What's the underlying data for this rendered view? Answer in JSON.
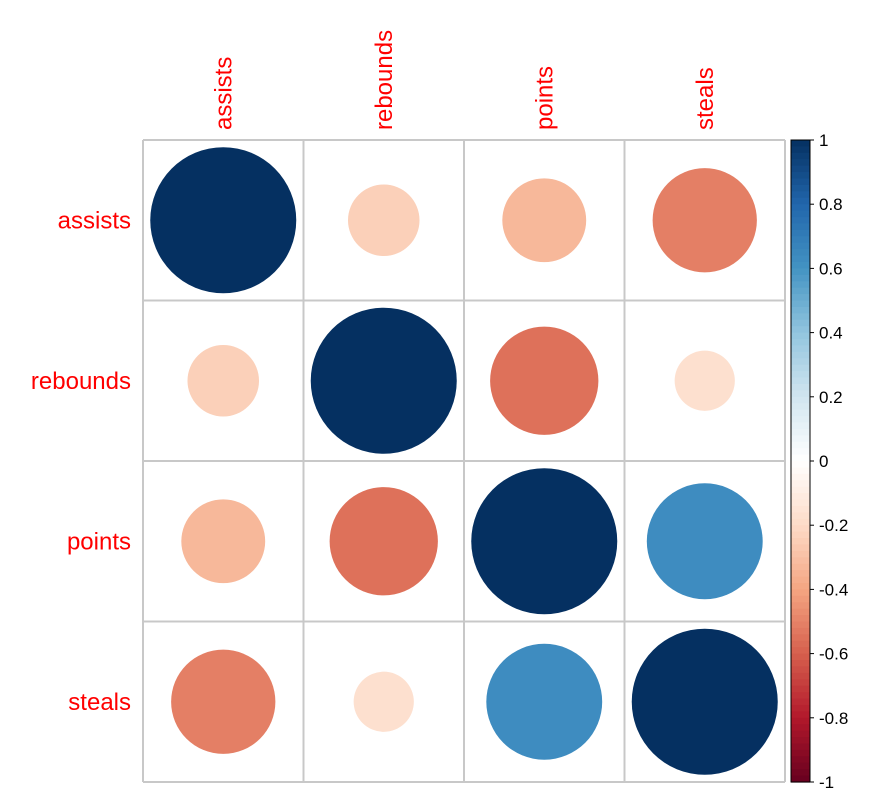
{
  "chart_data": {
    "type": "heatmap",
    "style": "corrplot-circle",
    "variables": [
      "assists",
      "rebounds",
      "points",
      "steals"
    ],
    "matrix": [
      [
        1.0,
        -0.24,
        -0.33,
        -0.51
      ],
      [
        -0.24,
        1.0,
        -0.55,
        -0.17
      ],
      [
        -0.33,
        -0.55,
        1.0,
        0.63
      ],
      [
        -0.51,
        -0.17,
        0.63,
        1.0
      ]
    ],
    "colorbar": {
      "range": [
        -1,
        1
      ],
      "ticks": [
        "1",
        "0.8",
        "0.6",
        "0.4",
        "0.2",
        "0",
        "-0.2",
        "-0.4",
        "-0.6",
        "-0.8",
        "-1"
      ],
      "palette": [
        "#67001F",
        "#B2182B",
        "#D6604D",
        "#F4A582",
        "#FDDBC7",
        "#FFFFFF",
        "#D1E5F0",
        "#92C5DE",
        "#4393C3",
        "#2166AC",
        "#053061"
      ]
    },
    "label_color": "#FF0000",
    "grid": true
  }
}
